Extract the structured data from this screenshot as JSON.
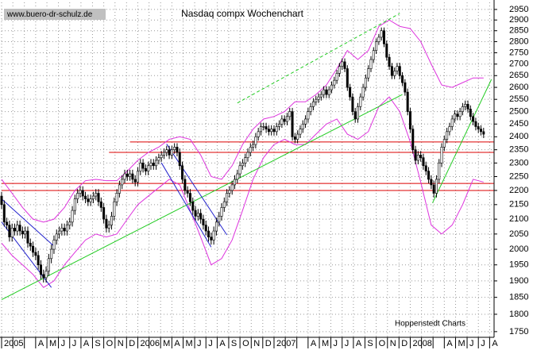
{
  "chart_data": {
    "type": "candlestick",
    "title": "Nasdaq compx Wochenchart",
    "source": "www.buero-dr-schulz.de",
    "credit": "Hoppenstedt Charts",
    "log": true,
    "grid": true,
    "ylim": [
      1734,
      2984
    ],
    "yticks": [
      1750,
      1800,
      1850,
      1900,
      1950,
      2000,
      2050,
      2100,
      2150,
      2200,
      2250,
      2300,
      2350,
      2400,
      2450,
      2500,
      2550,
      2600,
      2650,
      2700,
      2750,
      2800,
      2850,
      2900,
      2950
    ],
    "xlim": [
      0,
      188
    ],
    "xticks": [
      {
        "value": 0,
        "label": "2005"
      },
      {
        "value": 4.3,
        "label": null
      },
      {
        "value": 8.7,
        "label": null
      },
      {
        "value": 13,
        "label": "A"
      },
      {
        "value": 17.3,
        "label": "M"
      },
      {
        "value": 21.7,
        "label": "J"
      },
      {
        "value": 26,
        "label": "J"
      },
      {
        "value": 30.3,
        "label": "A"
      },
      {
        "value": 34.7,
        "label": "S"
      },
      {
        "value": 39,
        "label": "O"
      },
      {
        "value": 43.3,
        "label": "N"
      },
      {
        "value": 47.7,
        "label": "D"
      },
      {
        "value": 52,
        "label": "2006"
      },
      {
        "value": 56.3,
        "label": null
      },
      {
        "value": 60.7,
        "label": "M"
      },
      {
        "value": 65,
        "label": "A"
      },
      {
        "value": 69.3,
        "label": "M"
      },
      {
        "value": 73.7,
        "label": "J"
      },
      {
        "value": 78,
        "label": "J"
      },
      {
        "value": 82.3,
        "label": "A"
      },
      {
        "value": 86.7,
        "label": "S"
      },
      {
        "value": 91,
        "label": "O"
      },
      {
        "value": 95.3,
        "label": "N"
      },
      {
        "value": 99.7,
        "label": "D"
      },
      {
        "value": 104,
        "label": "2007"
      },
      {
        "value": 108.3,
        "label": null
      },
      {
        "value": 112.7,
        "label": null
      },
      {
        "value": 117,
        "label": "A"
      },
      {
        "value": 121.3,
        "label": "M"
      },
      {
        "value": 125.7,
        "label": "J"
      },
      {
        "value": 130,
        "label": "J"
      },
      {
        "value": 134.3,
        "label": "A"
      },
      {
        "value": 138.7,
        "label": "S"
      },
      {
        "value": 143,
        "label": "O"
      },
      {
        "value": 147.3,
        "label": "N"
      },
      {
        "value": 151.7,
        "label": "D"
      },
      {
        "value": 156,
        "label": "2008"
      },
      {
        "value": 160.3,
        "label": null
      },
      {
        "value": 164.7,
        "label": null
      },
      {
        "value": 169,
        "label": "A"
      },
      {
        "value": 173.3,
        "label": "M"
      },
      {
        "value": 177.7,
        "label": "J"
      },
      {
        "value": 182,
        "label": "J"
      },
      {
        "value": 186.3,
        "label": "A"
      }
    ],
    "open": [
      2180,
      2150,
      2090,
      2080,
      2040,
      2070,
      2060,
      2080,
      2060,
      2050,
      2060,
      2020,
      2010,
      1990,
      1980,
      1950,
      1920,
      1910,
      1930,
      1970,
      2000,
      2030,
      2050,
      2060,
      2070,
      2060,
      2080,
      2090,
      2130,
      2170,
      2190,
      2200,
      2180,
      2170,
      2160,
      2170,
      2180,
      2190,
      2160,
      2140,
      2100,
      2070,
      2080,
      2110,
      2160,
      2190,
      2220,
      2240,
      2260,
      2250,
      2260,
      2240,
      2230,
      2270,
      2300,
      2280,
      2270,
      2290,
      2300,
      2290,
      2310,
      2320,
      2330,
      2340,
      2350,
      2330,
      2350,
      2360,
      2340,
      2290,
      2240,
      2200,
      2190,
      2160,
      2130,
      2110,
      2120,
      2100,
      2080,
      2060,
      2040,
      2030,
      2060,
      2090,
      2110,
      2140,
      2160,
      2190,
      2200,
      2220,
      2240,
      2260,
      2290,
      2300,
      2320,
      2340,
      2360,
      2370,
      2400,
      2420,
      2440,
      2440,
      2430,
      2420,
      2430,
      2420,
      2440,
      2450,
      2470,
      2460,
      2480,
      2500,
      2400,
      2390,
      2410,
      2430,
      2450,
      2470,
      2500,
      2520,
      2540,
      2550,
      2560,
      2570,
      2590,
      2570,
      2590,
      2610,
      2630,
      2660,
      2690,
      2710,
      2680,
      2600,
      2560,
      2500,
      2470,
      2520,
      2560,
      2600,
      2640,
      2680,
      2720,
      2760,
      2800,
      2820,
      2850,
      2790,
      2730,
      2690,
      2650,
      2670,
      2690,
      2650,
      2620,
      2580,
      2500,
      2430,
      2350,
      2310,
      2330,
      2320,
      2290,
      2270,
      2240,
      2220,
      2190,
      2240,
      2300,
      2360,
      2390,
      2420,
      2440,
      2470,
      2490,
      2480,
      2500,
      2520,
      2530,
      2510,
      2480,
      2460,
      2440,
      2430,
      2420
    ],
    "high": [
      2195,
      2165,
      2105,
      2095,
      2085,
      2085,
      2095,
      2095,
      2075,
      2075,
      2075,
      2035,
      2025,
      2005,
      1995,
      1965,
      1935,
      1945,
      1985,
      2015,
      2045,
      2065,
      2075,
      2085,
      2085,
      2095,
      2105,
      2145,
      2185,
      2205,
      2215,
      2215,
      2195,
      2185,
      2185,
      2195,
      2205,
      2205,
      2175,
      2155,
      2115,
      2095,
      2125,
      2175,
      2205,
      2235,
      2255,
      2275,
      2275,
      2275,
      2275,
      2255,
      2285,
      2315,
      2315,
      2295,
      2305,
      2315,
      2315,
      2325,
      2335,
      2345,
      2355,
      2365,
      2365,
      2365,
      2375,
      2375,
      2355,
      2305,
      2255,
      2215,
      2205,
      2175,
      2145,
      2135,
      2135,
      2115,
      2095,
      2075,
      2055,
      2075,
      2105,
      2125,
      2155,
      2175,
      2205,
      2215,
      2235,
      2255,
      2275,
      2305,
      2315,
      2335,
      2355,
      2375,
      2385,
      2415,
      2435,
      2455,
      2455,
      2455,
      2445,
      2445,
      2445,
      2455,
      2465,
      2485,
      2485,
      2495,
      2515,
      2515,
      2415,
      2425,
      2445,
      2465,
      2485,
      2515,
      2535,
      2555,
      2565,
      2575,
      2585,
      2605,
      2605,
      2605,
      2625,
      2645,
      2675,
      2705,
      2725,
      2725,
      2695,
      2615,
      2575,
      2515,
      2535,
      2575,
      2615,
      2655,
      2695,
      2735,
      2775,
      2815,
      2835,
      2865,
      2865,
      2805,
      2745,
      2705,
      2685,
      2705,
      2705,
      2665,
      2635,
      2595,
      2515,
      2445,
      2365,
      2345,
      2345,
      2335,
      2305,
      2285,
      2255,
      2235,
      2255,
      2315,
      2375,
      2405,
      2435,
      2455,
      2485,
      2505,
      2505,
      2515,
      2535,
      2545,
      2545,
      2525,
      2495,
      2475,
      2455,
      2445,
      2435
    ],
    "low": [
      2135,
      2075,
      2065,
      2025,
      2025,
      2045,
      2045,
      2045,
      2035,
      2035,
      2005,
      1995,
      1975,
      1965,
      1935,
      1905,
      1895,
      1895,
      1915,
      1955,
      1985,
      2015,
      2035,
      2045,
      2045,
      2045,
      2065,
      2075,
      2115,
      2155,
      2175,
      2165,
      2155,
      2145,
      2145,
      2155,
      2165,
      2145,
      2125,
      2085,
      2055,
      2055,
      2065,
      2095,
      2145,
      2175,
      2205,
      2225,
      2235,
      2235,
      2225,
      2215,
      2215,
      2255,
      2265,
      2255,
      2255,
      2275,
      2275,
      2275,
      2295,
      2305,
      2315,
      2325,
      2315,
      2315,
      2335,
      2325,
      2275,
      2225,
      2185,
      2175,
      2145,
      2115,
      2095,
      2095,
      2085,
      2065,
      2045,
      2025,
      2015,
      2015,
      2045,
      2075,
      2095,
      2125,
      2145,
      2175,
      2185,
      2205,
      2225,
      2245,
      2275,
      2285,
      2305,
      2325,
      2345,
      2355,
      2385,
      2405,
      2425,
      2415,
      2405,
      2405,
      2405,
      2405,
      2425,
      2435,
      2445,
      2445,
      2465,
      2385,
      2375,
      2375,
      2395,
      2415,
      2435,
      2455,
      2485,
      2505,
      2525,
      2535,
      2545,
      2555,
      2555,
      2555,
      2575,
      2595,
      2615,
      2645,
      2675,
      2665,
      2585,
      2545,
      2485,
      2455,
      2455,
      2505,
      2545,
      2585,
      2625,
      2665,
      2705,
      2745,
      2785,
      2805,
      2775,
      2715,
      2675,
      2635,
      2635,
      2655,
      2635,
      2605,
      2565,
      2485,
      2415,
      2335,
      2295,
      2295,
      2305,
      2275,
      2255,
      2225,
      2205,
      2175,
      2175,
      2225,
      2285,
      2345,
      2375,
      2405,
      2425,
      2455,
      2465,
      2465,
      2485,
      2505,
      2495,
      2465,
      2445,
      2425,
      2415,
      2405,
      2395
    ],
    "close": [
      2150,
      2090,
      2080,
      2040,
      2070,
      2060,
      2080,
      2060,
      2050,
      2060,
      2020,
      2010,
      1990,
      1980,
      1950,
      1920,
      1910,
      1930,
      1970,
      2000,
      2030,
      2050,
      2060,
      2070,
      2060,
      2080,
      2090,
      2130,
      2170,
      2190,
      2200,
      2180,
      2170,
      2160,
      2170,
      2180,
      2190,
      2160,
      2140,
      2100,
      2070,
      2080,
      2110,
      2160,
      2190,
      2220,
      2240,
      2260,
      2250,
      2260,
      2240,
      2230,
      2270,
      2300,
      2280,
      2270,
      2290,
      2300,
      2290,
      2310,
      2320,
      2330,
      2340,
      2350,
      2330,
      2350,
      2360,
      2340,
      2290,
      2240,
      2200,
      2190,
      2160,
      2130,
      2110,
      2120,
      2100,
      2080,
      2060,
      2040,
      2030,
      2060,
      2090,
      2110,
      2140,
      2160,
      2190,
      2200,
      2220,
      2240,
      2260,
      2290,
      2300,
      2320,
      2340,
      2360,
      2370,
      2400,
      2420,
      2440,
      2440,
      2430,
      2420,
      2430,
      2420,
      2440,
      2450,
      2470,
      2460,
      2480,
      2500,
      2400,
      2390,
      2410,
      2430,
      2450,
      2470,
      2500,
      2520,
      2540,
      2550,
      2560,
      2570,
      2590,
      2570,
      2590,
      2610,
      2630,
      2660,
      2690,
      2710,
      2680,
      2600,
      2560,
      2500,
      2470,
      2520,
      2560,
      2600,
      2640,
      2680,
      2720,
      2760,
      2800,
      2820,
      2850,
      2790,
      2730,
      2690,
      2650,
      2670,
      2690,
      2650,
      2620,
      2580,
      2500,
      2430,
      2350,
      2310,
      2330,
      2320,
      2290,
      2270,
      2240,
      2220,
      2190,
      2240,
      2300,
      2360,
      2390,
      2420,
      2440,
      2470,
      2490,
      2480,
      2500,
      2520,
      2530,
      2510,
      2480,
      2460,
      2440,
      2430,
      2420,
      2410
    ],
    "up_color": "#ffffff",
    "down_color": "#000000",
    "lines": [
      {
        "color": "#dd0000",
        "x": [
          49,
          188
        ],
        "values": [
          2380,
          2380
        ]
      },
      {
        "color": "#dd0000",
        "x": [
          41,
          188
        ],
        "values": [
          2340,
          2340
        ]
      },
      {
        "color": "#dd0000",
        "x": [
          0,
          188
        ],
        "values": [
          2225,
          2225
        ]
      },
      {
        "color": "#dd0000",
        "x": [
          0,
          188
        ],
        "values": [
          2200,
          2200
        ]
      },
      {
        "color": "#dd33dd",
        "x": [
          0,
          4,
          8,
          12,
          16,
          20,
          24,
          28,
          32,
          36,
          40,
          44,
          48,
          52,
          56,
          60,
          64,
          68,
          72,
          76,
          80,
          84,
          88,
          92,
          96,
          100,
          104,
          108,
          112,
          116,
          120,
          124,
          128,
          132,
          136,
          140,
          144,
          148,
          152,
          156,
          160,
          164,
          168,
          172,
          176,
          180,
          184
        ],
        "values": [
          2240,
          2190,
          2140,
          2100,
          2090,
          2100,
          2140,
          2200,
          2235,
          2240,
          2235,
          2235,
          2270,
          2310,
          2340,
          2360,
          2390,
          2400,
          2390,
          2330,
          2250,
          2240,
          2290,
          2370,
          2430,
          2470,
          2480,
          2500,
          2540,
          2540,
          2570,
          2610,
          2680,
          2760,
          2720,
          2760,
          2870,
          2900,
          2870,
          2860,
          2800,
          2700,
          2610,
          2600,
          2620,
          2640,
          2640
        ]
      },
      {
        "color": "#dd33dd",
        "x": [
          0,
          4,
          8,
          12,
          16,
          20,
          24,
          28,
          32,
          36,
          40,
          44,
          48,
          52,
          56,
          60,
          64,
          68,
          72,
          76,
          80,
          84,
          88,
          92,
          96,
          100,
          104,
          108,
          112,
          116,
          120,
          124,
          128,
          132,
          136,
          140,
          144,
          148,
          152,
          156,
          160,
          164,
          168,
          172,
          176,
          180,
          184
        ],
        "values": [
          2020,
          1980,
          1950,
          1920,
          1880,
          1900,
          1950,
          1990,
          2030,
          2050,
          2040,
          2050,
          2100,
          2150,
          2180,
          2210,
          2240,
          2220,
          2130,
          2040,
          1950,
          1970,
          2030,
          2130,
          2240,
          2320,
          2370,
          2390,
          2370,
          2370,
          2410,
          2450,
          2470,
          2410,
          2390,
          2420,
          2520,
          2560,
          2500,
          2380,
          2230,
          2080,
          2050,
          2080,
          2150,
          2240,
          2230
        ]
      },
      {
        "color": "#22cc22",
        "x": [
          0,
          153
        ],
        "values": [
          1843,
          2570
        ]
      },
      {
        "color": "#22cc22",
        "dashed": true,
        "x": [
          90,
          152
        ],
        "values": [
          2535,
          2931
        ]
      },
      {
        "color": "#22cc22",
        "x": [
          164.5,
          187
        ],
        "values": [
          2156,
          2634
        ]
      },
      {
        "color": "#2222cc",
        "x": [
          0,
          20
        ],
        "values": [
          2170,
          2010
        ]
      },
      {
        "color": "#2222cc",
        "x": [
          0,
          19
        ],
        "values": [
          2090,
          1880
        ]
      },
      {
        "color": "#2222cc",
        "x": [
          63,
          86
        ],
        "values": [
          2372,
          2047
        ]
      },
      {
        "color": "#2222cc",
        "x": [
          61,
          80
        ],
        "values": [
          2301,
          2007
        ]
      }
    ]
  }
}
